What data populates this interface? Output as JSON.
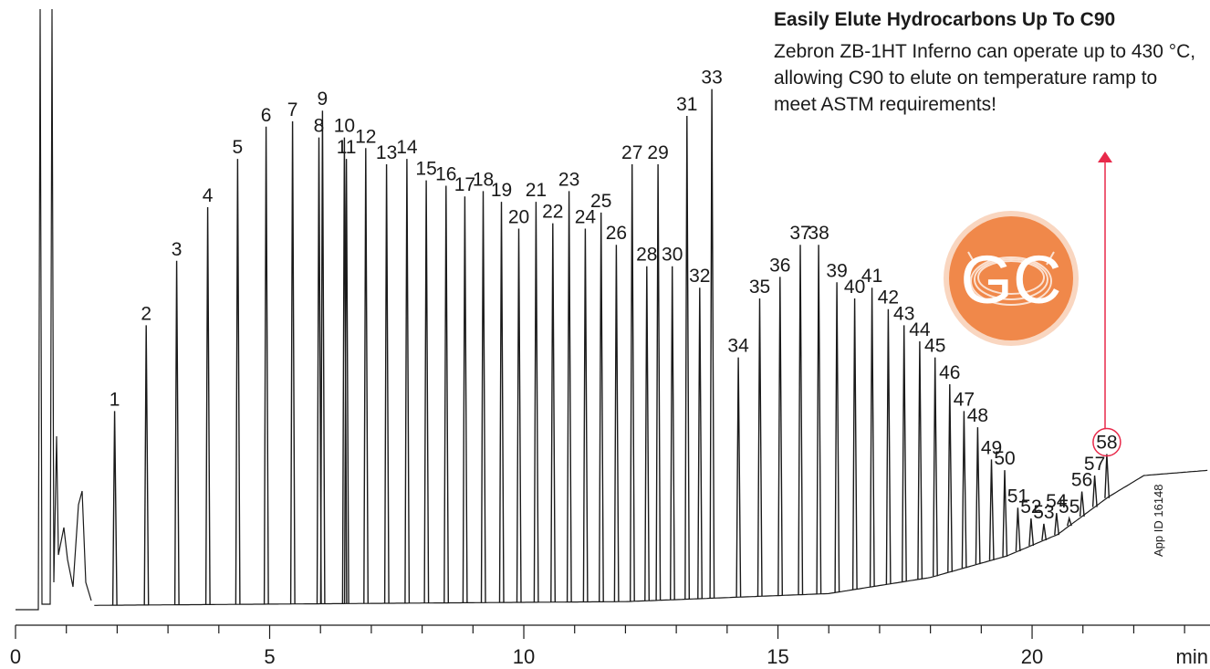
{
  "annotation": {
    "title": "Easily Elute Hydrocarbons Up To C90",
    "body": "Zebron ZB-1HT Inferno can operate up to 430 °C, allowing C90 to elute on temperature ramp to meet ASTM requirements!"
  },
  "logo": {
    "text": "GC"
  },
  "app_id": "App ID 16148",
  "colors": {
    "trace": "#1a1a1a",
    "highlight": "#e8294a",
    "logo_fill": "#f0884a",
    "logo_halo": "#f9d6c0"
  },
  "chart_data": {
    "type": "line",
    "title": "",
    "xlabel": "min",
    "ylabel": "",
    "xlim": [
      0,
      23.5
    ],
    "ylim": [
      0,
      100
    ],
    "x_ticks": [
      {
        "value": 0,
        "label": "0"
      },
      {
        "value": 5,
        "label": "5"
      },
      {
        "value": 10,
        "label": "10"
      },
      {
        "value": 15,
        "label": "15"
      },
      {
        "value": 20,
        "label": "20"
      },
      {
        "value": 23.5,
        "label": "min"
      }
    ],
    "highlight_peak": "58",
    "peaks": [
      {
        "label": "1",
        "rt": 1.95,
        "height": 37
      },
      {
        "label": "2",
        "rt": 2.57,
        "height": 53
      },
      {
        "label": "3",
        "rt": 3.17,
        "height": 65
      },
      {
        "label": "4",
        "rt": 3.78,
        "height": 75
      },
      {
        "label": "5",
        "rt": 4.37,
        "height": 84
      },
      {
        "label": "6",
        "rt": 4.93,
        "height": 90
      },
      {
        "label": "7",
        "rt": 5.45,
        "height": 91
      },
      {
        "label": "8",
        "rt": 5.97,
        "height": 88
      },
      {
        "label": "9",
        "rt": 6.04,
        "height": 93
      },
      {
        "label": "10",
        "rt": 6.47,
        "height": 88
      },
      {
        "label": "11",
        "rt": 6.51,
        "height": 84
      },
      {
        "label": "12",
        "rt": 6.89,
        "height": 86
      },
      {
        "label": "13",
        "rt": 7.3,
        "height": 83
      },
      {
        "label": "14",
        "rt": 7.7,
        "height": 84
      },
      {
        "label": "15",
        "rt": 8.08,
        "height": 80
      },
      {
        "label": "16",
        "rt": 8.47,
        "height": 79
      },
      {
        "label": "17",
        "rt": 8.84,
        "height": 77
      },
      {
        "label": "18",
        "rt": 9.2,
        "height": 78
      },
      {
        "label": "19",
        "rt": 9.56,
        "height": 76
      },
      {
        "label": "20",
        "rt": 9.9,
        "height": 71
      },
      {
        "label": "21",
        "rt": 10.24,
        "height": 76
      },
      {
        "label": "22",
        "rt": 10.57,
        "height": 72
      },
      {
        "label": "23",
        "rt": 10.89,
        "height": 78
      },
      {
        "label": "24",
        "rt": 11.21,
        "height": 71
      },
      {
        "label": "25",
        "rt": 11.52,
        "height": 74
      },
      {
        "label": "26",
        "rt": 11.82,
        "height": 68
      },
      {
        "label": "27",
        "rt": 12.13,
        "height": 83
      },
      {
        "label": "28",
        "rt": 12.42,
        "height": 64
      },
      {
        "label": "29",
        "rt": 12.64,
        "height": 83
      },
      {
        "label": "30",
        "rt": 12.92,
        "height": 64
      },
      {
        "label": "31",
        "rt": 13.21,
        "height": 92
      },
      {
        "label": "32",
        "rt": 13.46,
        "height": 60
      },
      {
        "label": "33",
        "rt": 13.7,
        "height": 97
      },
      {
        "label": "34",
        "rt": 14.22,
        "height": 47
      },
      {
        "label": "35",
        "rt": 14.64,
        "height": 58
      },
      {
        "label": "36",
        "rt": 15.04,
        "height": 62
      },
      {
        "label": "37",
        "rt": 15.44,
        "height": 68
      },
      {
        "label": "38",
        "rt": 15.8,
        "height": 68
      },
      {
        "label": "39",
        "rt": 16.16,
        "height": 61
      },
      {
        "label": "40",
        "rt": 16.51,
        "height": 58
      },
      {
        "label": "41",
        "rt": 16.85,
        "height": 60
      },
      {
        "label": "42",
        "rt": 17.17,
        "height": 56
      },
      {
        "label": "43",
        "rt": 17.48,
        "height": 53
      },
      {
        "label": "44",
        "rt": 17.79,
        "height": 50
      },
      {
        "label": "45",
        "rt": 18.09,
        "height": 47
      },
      {
        "label": "46",
        "rt": 18.38,
        "height": 42
      },
      {
        "label": "47",
        "rt": 18.66,
        "height": 37
      },
      {
        "label": "48",
        "rt": 18.93,
        "height": 34
      },
      {
        "label": "49",
        "rt": 19.2,
        "height": 28
      },
      {
        "label": "50",
        "rt": 19.46,
        "height": 26
      },
      {
        "label": "51",
        "rt": 19.72,
        "height": 19
      },
      {
        "label": "52",
        "rt": 19.98,
        "height": 17
      },
      {
        "label": "53",
        "rt": 20.23,
        "height": 16
      },
      {
        "label": "54",
        "rt": 20.48,
        "height": 18
      },
      {
        "label": "55",
        "rt": 20.73,
        "height": 17
      },
      {
        "label": "56",
        "rt": 20.98,
        "height": 22
      },
      {
        "label": "57",
        "rt": 21.23,
        "height": 25
      },
      {
        "label": "58",
        "rt": 21.47,
        "height": 29
      }
    ],
    "baseline": [
      [
        0,
        0
      ],
      [
        1.5,
        0.8
      ],
      [
        12,
        1.5
      ],
      [
        16,
        3
      ],
      [
        18,
        6
      ],
      [
        19.5,
        10
      ],
      [
        20.5,
        14
      ],
      [
        21.5,
        21
      ],
      [
        22.2,
        25
      ],
      [
        23.5,
        26
      ]
    ]
  }
}
